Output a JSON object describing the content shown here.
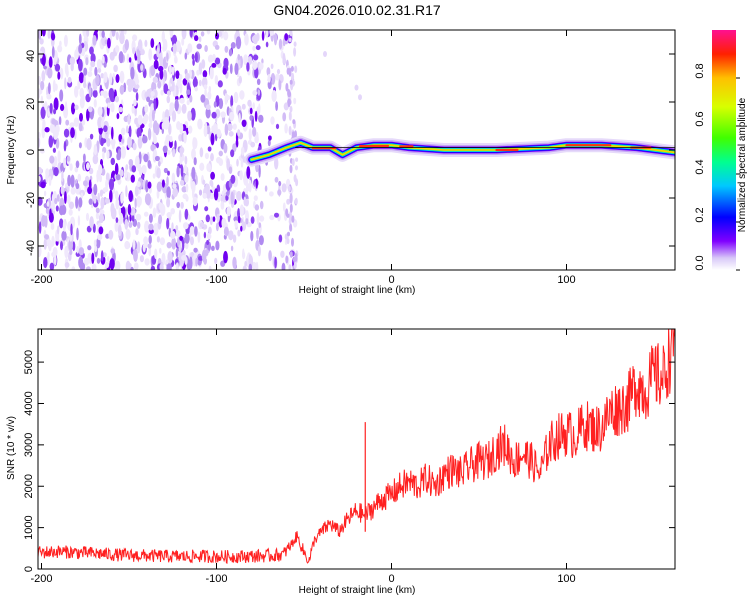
{
  "title": "GN04.2026.010.02.31.R17",
  "chart_data": [
    {
      "type": "heatmap",
      "xlabel": "Height of straight line (km)",
      "ylabel": "Frequency (Hz)",
      "xlim": [
        -202,
        162
      ],
      "ylim": [
        -50,
        50
      ],
      "xticks": [
        -200,
        -100,
        0,
        100
      ],
      "xtick_labels": [
        "-200",
        "-100",
        "0",
        "100"
      ],
      "yticks": [
        -40,
        -20,
        0,
        20,
        40
      ],
      "ytick_labels": [
        "-40",
        "-20",
        "0",
        "20",
        "40"
      ],
      "noise_region": [
        -202,
        -55
      ],
      "signal_start": -55,
      "doppler_track": [
        {
          "x": -80,
          "y": -4
        },
        {
          "x": -70,
          "y": -2
        },
        {
          "x": -60,
          "y": 1
        },
        {
          "x": -52,
          "y": 3
        },
        {
          "x": -45,
          "y": 1
        },
        {
          "x": -35,
          "y": 1
        },
        {
          "x": -28,
          "y": -2
        },
        {
          "x": -20,
          "y": 1
        },
        {
          "x": -10,
          "y": 2
        },
        {
          "x": 0,
          "y": 2
        },
        {
          "x": 10,
          "y": 1
        },
        {
          "x": 30,
          "y": 0
        },
        {
          "x": 60,
          "y": 0
        },
        {
          "x": 90,
          "y": 1
        },
        {
          "x": 100,
          "y": 2
        },
        {
          "x": 120,
          "y": 2
        },
        {
          "x": 140,
          "y": 1
        },
        {
          "x": 162,
          "y": -1
        }
      ],
      "colorbar": {
        "label": "Normalized spectral amplitude",
        "range": [
          0,
          1
        ],
        "ticks": [
          0.0,
          0.2,
          0.4,
          0.6,
          0.8
        ],
        "tick_labels": [
          "0.0",
          "0.2",
          "0.4",
          "0.6",
          "0.8"
        ],
        "colormap": [
          "#ffffff",
          "#d8c8f8",
          "#8000ff",
          "#0000ff",
          "#00c8ff",
          "#00ff90",
          "#40ff00",
          "#d8ff00",
          "#ffc000",
          "#ff2000",
          "#ff1090"
        ]
      }
    },
    {
      "type": "line",
      "xlabel": "Height of straight line (km)",
      "ylabel": "SNR (10 * v/v)",
      "xlim": [
        -202,
        162
      ],
      "ylim": [
        0,
        5800
      ],
      "xticks": [
        -200,
        -100,
        0,
        100
      ],
      "xtick_labels": [
        "-200",
        "-100",
        "0",
        "100"
      ],
      "yticks": [
        0,
        1000,
        2000,
        3000,
        4000,
        5000
      ],
      "ytick_labels": [
        "0",
        "1000",
        "2000",
        "3000",
        "4000",
        "5000"
      ],
      "color": "#ff2020",
      "series": [
        {
          "name": "SNR",
          "x": [
            -202,
            -190,
            -180,
            -170,
            -160,
            -150,
            -140,
            -130,
            -120,
            -110,
            -100,
            -90,
            -80,
            -70,
            -62,
            -57,
            -54,
            -50,
            -47,
            -44,
            -40,
            -35,
            -30,
            -25,
            -20,
            -15,
            -10,
            -5,
            0,
            5,
            10,
            15,
            20,
            25,
            30,
            35,
            40,
            45,
            50,
            55,
            60,
            65,
            70,
            75,
            80,
            85,
            90,
            95,
            100,
            105,
            110,
            115,
            120,
            125,
            130,
            135,
            140,
            145,
            150,
            155,
            160,
            162
          ],
          "y": [
            400,
            420,
            400,
            380,
            350,
            330,
            320,
            310,
            300,
            310,
            300,
            300,
            310,
            320,
            350,
            600,
            800,
            400,
            200,
            700,
            900,
            1100,
            900,
            1200,
            1400,
            1300,
            1500,
            1700,
            1800,
            2000,
            2100,
            2000,
            2200,
            2000,
            2300,
            2400,
            2300,
            2500,
            2600,
            2600,
            2900,
            3000,
            2600,
            2800,
            2600,
            2300,
            3000,
            3200,
            3300,
            3200,
            3500,
            3400,
            3400,
            3800,
            3900,
            4000,
            4500,
            4300,
            4700,
            4600,
            5300,
            5600
          ]
        }
      ],
      "annotations": [
        {
          "x": -15,
          "y": 3550,
          "label": ""
        }
      ]
    }
  ]
}
